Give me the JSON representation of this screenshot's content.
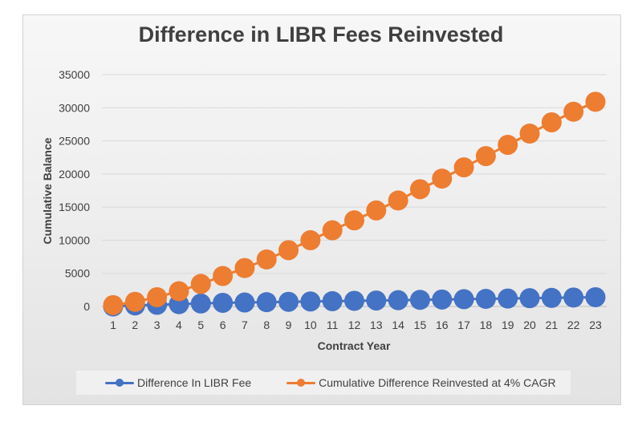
{
  "chart_data": {
    "type": "scatter",
    "title": "Difference in LIBR Fees Reinvested",
    "xlabel": "Contract Year",
    "ylabel": "Cumulative  Balance",
    "x": [
      1,
      2,
      3,
      4,
      5,
      6,
      7,
      8,
      9,
      10,
      11,
      12,
      13,
      14,
      15,
      16,
      17,
      18,
      19,
      20,
      21,
      22,
      23
    ],
    "xlim": [
      1,
      23
    ],
    "ylim": [
      0,
      35000
    ],
    "yticks": [
      0,
      5000,
      10000,
      15000,
      20000,
      25000,
      30000,
      35000
    ],
    "grid": true,
    "legend_position": "bottom",
    "series": [
      {
        "name": "Difference In LIBR Fee",
        "color": "#4472c4",
        "values": [
          0,
          150,
          250,
          350,
          450,
          550,
          600,
          650,
          700,
          750,
          800,
          850,
          900,
          950,
          1000,
          1050,
          1100,
          1150,
          1200,
          1250,
          1300,
          1350,
          1400
        ]
      },
      {
        "name": "Cumulative Difference Reinvested at 4% CAGR",
        "color": "#ed7d31",
        "values": [
          200,
          700,
          1400,
          2300,
          3400,
          4600,
          5800,
          7100,
          8500,
          10000,
          11500,
          13000,
          14500,
          16000,
          17700,
          19300,
          21000,
          22700,
          24400,
          26100,
          27800,
          29400,
          30900
        ]
      }
    ]
  }
}
